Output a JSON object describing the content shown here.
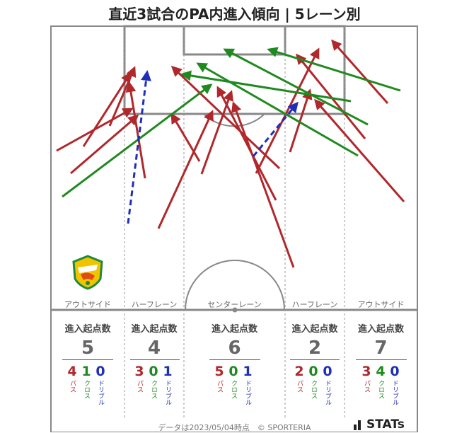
{
  "title": "直近3試合のPA内進入傾向 | 5レーン別",
  "lanes": [
    {
      "name": "アウトサイド",
      "header": "進入起点数",
      "count": "5",
      "pass": "4",
      "cross": "1",
      "dribble": "0"
    },
    {
      "name": "ハーフレーン",
      "header": "進入起点数",
      "count": "4",
      "pass": "3",
      "cross": "0",
      "dribble": "1"
    },
    {
      "name": "センターレーン",
      "header": "進入起点数",
      "count": "6",
      "pass": "5",
      "cross": "0",
      "dribble": "1"
    },
    {
      "name": "ハーフレーン",
      "header": "進入起点数",
      "count": "2",
      "pass": "2",
      "cross": "0",
      "dribble": "0"
    },
    {
      "name": "アウトサイド",
      "header": "進入起点数",
      "count": "7",
      "pass": "3",
      "cross": "4",
      "dribble": "0"
    }
  ],
  "legend": {
    "pass": "パス",
    "cross": "クロス",
    "dribble": "ドリブル"
  },
  "colors": {
    "pass": "#b0282c",
    "cross": "#1f8a1f",
    "dribble": "#1f2fb8",
    "pitch_line": "#888888"
  },
  "footer": "データは2023/05/04時点　© SPORTERIA",
  "brand": "STATs",
  "crest_icon": "team-crest-icon"
}
